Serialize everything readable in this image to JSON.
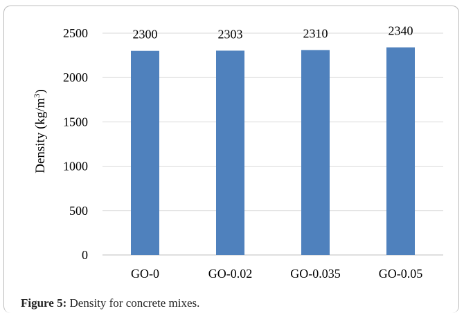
{
  "caption": {
    "label": "Figure 5:",
    "text": " Density for concrete mixes."
  },
  "chart_data": {
    "type": "bar",
    "categories": [
      "GO-0",
      "GO-0.02",
      "GO-0.035",
      "GO-0.05"
    ],
    "values": [
      2300,
      2303,
      2310,
      2340
    ],
    "data_labels": [
      "2300",
      "2303",
      "2310",
      "2340"
    ],
    "title": "",
    "xlabel": "",
    "ylabel": "Density (kg/m3)",
    "ylim": [
      0,
      2500
    ],
    "yticks": [
      0,
      500,
      1000,
      1500,
      2000,
      2500
    ],
    "ytick_labels": [
      "0",
      "500",
      "1000",
      "1500",
      "2000",
      "2500"
    ],
    "grid": true,
    "legend": "none",
    "bar_color": "#4f81bd",
    "grid_color": "#d9d9d9"
  }
}
